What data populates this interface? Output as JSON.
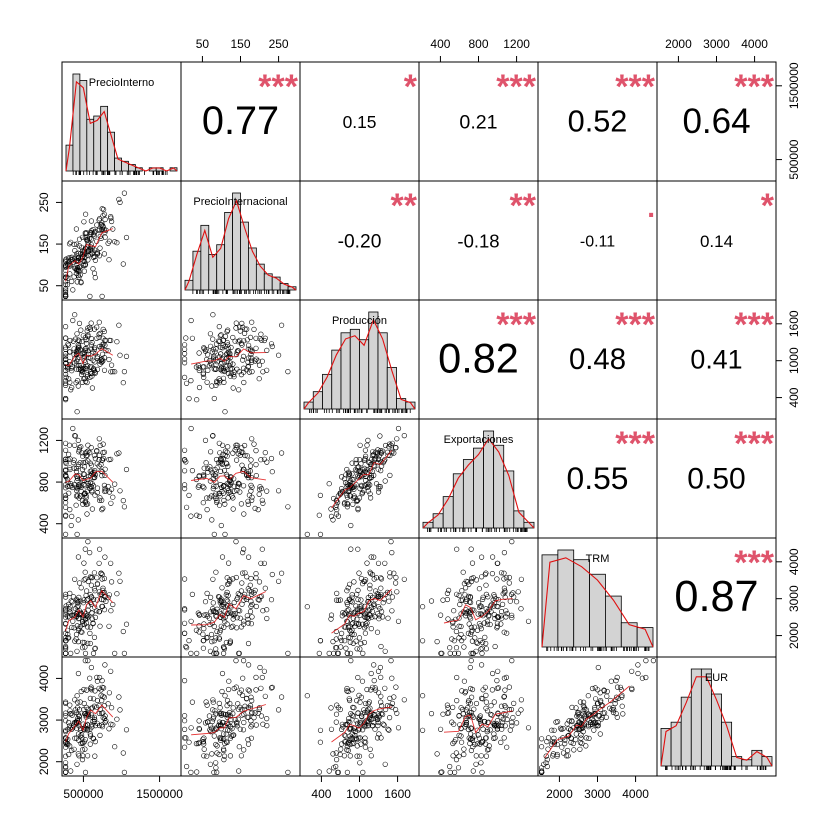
{
  "chart_data": {
    "type": "scatter-matrix",
    "variables": [
      {
        "name": "PrecioInterno",
        "ticks": [
          "500000",
          "1500000"
        ],
        "range": [
          150000,
          2150000
        ]
      },
      {
        "name": "PrecioInternacional",
        "ticks": [
          "50",
          "150",
          "250"
        ],
        "range": [
          40,
          320
        ]
      },
      {
        "name": "Producción",
        "ticks": [
          "400",
          "1000",
          "1600"
        ],
        "range": [
          300,
          1750
        ]
      },
      {
        "name": "Exportaciones",
        "ticks": [
          "400",
          "800",
          "1200"
        ],
        "range": [
          300,
          1450
        ]
      },
      {
        "name": "TRM",
        "ticks": [
          "2000",
          "3000",
          "4000"
        ],
        "range": [
          1750,
          4050
        ]
      },
      {
        "name": "EUR",
        "ticks": [
          "2000",
          "3000",
          "4000"
        ],
        "range": [
          1700,
          4700
        ]
      }
    ],
    "top_axis_ticks": {
      "1": [
        "50",
        "150",
        "250"
      ],
      "3": [
        "400",
        "800",
        "1200"
      ],
      "5": [
        "2000",
        "3000",
        "4000"
      ]
    },
    "bottom_axis_ticks": {
      "0": [
        "500000",
        "1500000"
      ],
      "2": [
        "400",
        "1000",
        "1600"
      ],
      "4": [
        "2000",
        "3000",
        "4000"
      ]
    },
    "left_axis_ticks": {
      "1": [
        "50",
        "150",
        "250"
      ],
      "3": [
        "400",
        "800",
        "1200"
      ],
      "5": [
        "2000",
        "3000",
        "4000"
      ]
    },
    "right_axis_ticks": {
      "0": [
        "500000",
        "1500000"
      ],
      "2": [
        "400",
        "1000",
        "1600"
      ],
      "4": [
        "2000",
        "3000",
        "4000"
      ]
    },
    "correlations": [
      {
        "row": 0,
        "col": 1,
        "value": "0.77",
        "stars": "***"
      },
      {
        "row": 0,
        "col": 2,
        "value": "0.15",
        "stars": "*"
      },
      {
        "row": 0,
        "col": 3,
        "value": "0.21",
        "stars": "***"
      },
      {
        "row": 0,
        "col": 4,
        "value": "0.52",
        "stars": "***"
      },
      {
        "row": 0,
        "col": 5,
        "value": "0.64",
        "stars": "***"
      },
      {
        "row": 1,
        "col": 2,
        "value": "-0.20",
        "stars": "**"
      },
      {
        "row": 1,
        "col": 3,
        "value": "-0.18",
        "stars": "**"
      },
      {
        "row": 1,
        "col": 4,
        "value": "-0.11",
        "stars": "."
      },
      {
        "row": 1,
        "col": 5,
        "value": "0.14",
        "stars": "*"
      },
      {
        "row": 2,
        "col": 3,
        "value": "0.82",
        "stars": "***"
      },
      {
        "row": 2,
        "col": 4,
        "value": "0.48",
        "stars": "***"
      },
      {
        "row": 2,
        "col": 5,
        "value": "0.41",
        "stars": "***"
      },
      {
        "row": 3,
        "col": 4,
        "value": "0.55",
        "stars": "***"
      },
      {
        "row": 3,
        "col": 5,
        "value": "0.50",
        "stars": "***"
      },
      {
        "row": 4,
        "col": 5,
        "value": "0.87",
        "stars": "***"
      }
    ],
    "histograms": [
      {
        "var": 0,
        "counts": [
          8,
          30,
          28,
          16,
          17,
          20,
          12,
          4,
          3,
          2,
          1,
          0,
          1,
          1,
          0,
          1
        ]
      },
      {
        "var": 1,
        "counts": [
          3,
          12,
          20,
          11,
          14,
          24,
          30,
          21,
          13,
          8,
          5,
          4,
          2,
          1
        ]
      },
      {
        "var": 2,
        "counts": [
          2,
          5,
          10,
          17,
          22,
          23,
          20,
          28,
          22,
          12,
          3,
          2
        ]
      },
      {
        "var": 3,
        "counts": [
          2,
          5,
          11,
          19,
          24,
          28,
          34,
          29,
          20,
          6,
          2
        ]
      },
      {
        "var": 4,
        "counts": [
          38,
          40,
          36,
          30,
          21,
          10,
          8
        ]
      },
      {
        "var": 5,
        "counts": [
          12,
          14,
          22,
          31,
          31,
          23,
          14,
          3,
          2,
          5,
          3
        ]
      }
    ],
    "n_points": 190,
    "colors": {
      "bars": "#d3d3d3",
      "smooth": "#e01010",
      "stars": "#DF536B"
    }
  }
}
